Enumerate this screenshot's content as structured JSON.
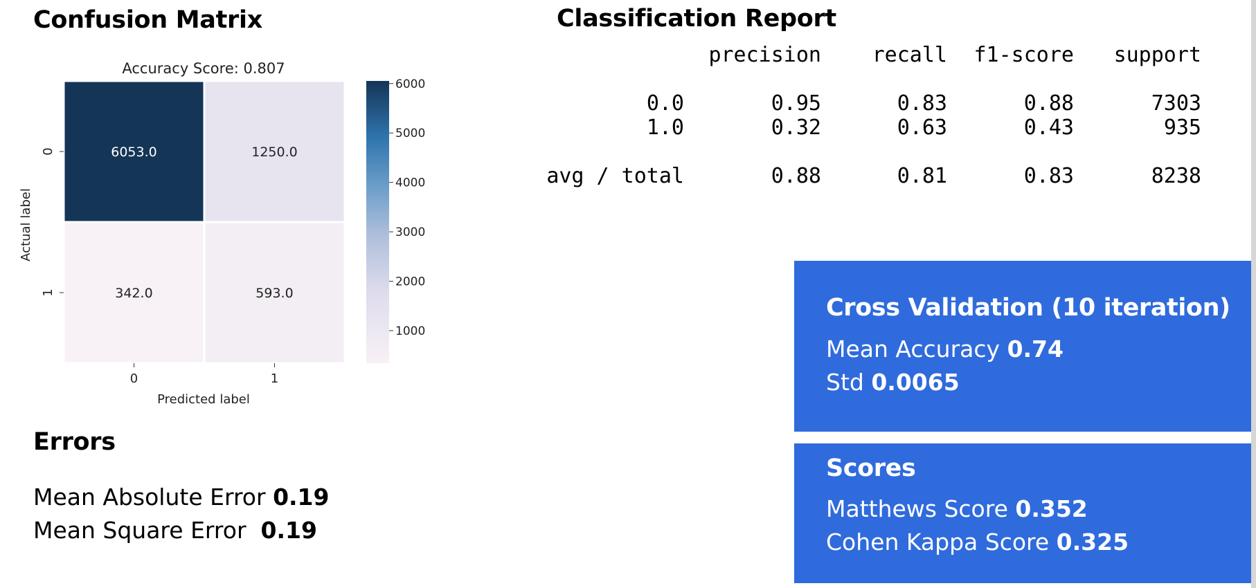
{
  "headings": {
    "confusion_matrix": "Confusion Matrix",
    "classification_report": "Classification Report",
    "errors": "Errors"
  },
  "chart_data": {
    "type": "heatmap",
    "title": "Accuracy Score: 0.807",
    "xlabel": "Predicted label",
    "ylabel": "Actual label",
    "x_categories": [
      "0",
      "1"
    ],
    "y_categories": [
      "0",
      "1"
    ],
    "values": [
      [
        6053.0,
        1250.0
      ],
      [
        342.0,
        593.0
      ]
    ],
    "value_labels": [
      [
        "6053.0",
        "1250.0"
      ],
      [
        "342.0",
        "593.0"
      ]
    ],
    "colorbar": {
      "min": 342,
      "max": 6053,
      "ticks": [
        "1000",
        "2000",
        "3000",
        "4000",
        "5000",
        "6000"
      ]
    },
    "colormap_low": "#f8f1f6",
    "colormap_high": "#143556"
  },
  "report": {
    "headers": [
      "precision",
      "recall",
      "f1-score",
      "support"
    ],
    "rows": [
      {
        "label": "0.0",
        "precision": "0.95",
        "recall": "0.83",
        "f1": "0.88",
        "support": "7303"
      },
      {
        "label": "1.0",
        "precision": "0.32",
        "recall": "0.63",
        "f1": "0.43",
        "support": "935"
      }
    ],
    "total": {
      "label": "avg / total",
      "precision": "0.88",
      "recall": "0.81",
      "f1": "0.83",
      "support": "8238"
    }
  },
  "errors": {
    "mae_label": "Mean Absolute Error ",
    "mae_value": "0.19",
    "mse_label": "Mean Square Error  ",
    "mse_value": "0.19"
  },
  "cross_validation": {
    "title": "Cross Validation (10 iteration)",
    "mean_label": "Mean Accuracy ",
    "mean_value": "0.74",
    "std_label": "Std ",
    "std_value": "0.0065"
  },
  "scores": {
    "title": "Scores",
    "matthews_label": "Matthews Score ",
    "matthews_value": "0.352",
    "kappa_label": "Cohen Kappa Score ",
    "kappa_value": "0.325"
  },
  "colors": {
    "panel": "#2f6bdc"
  }
}
